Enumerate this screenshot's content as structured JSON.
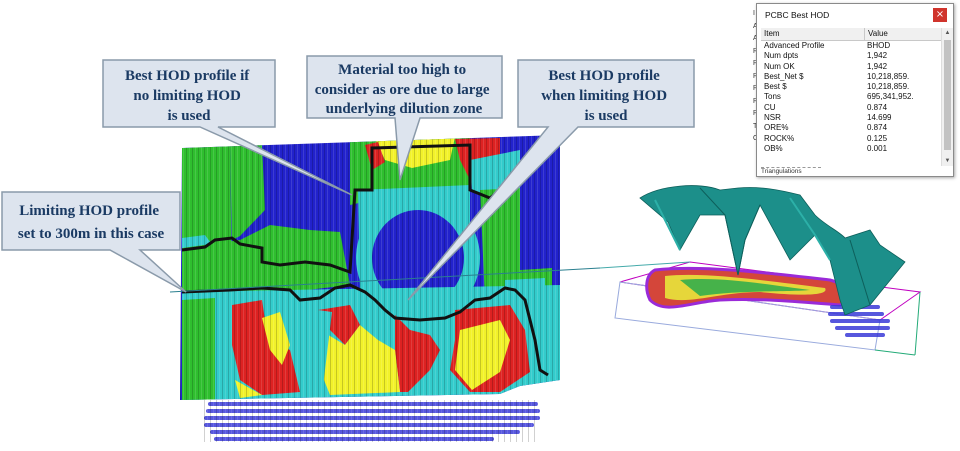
{
  "callouts": {
    "best_no_limit": [
      "Best HOD profile if",
      "no limiting  HOD",
      "is used"
    ],
    "too_high": [
      "Material too high to",
      "consider as ore due to large",
      "underlying dilution zone"
    ],
    "best_limit": [
      "Best HOD profile",
      "when limiting  HOD",
      "is used"
    ],
    "limiting": [
      "Limiting  HOD profile",
      "set to 300m in this case"
    ]
  },
  "dialog": {
    "title": "PCBC Best HOD",
    "close_glyph": "×",
    "columns": [
      "Item",
      "Value"
    ],
    "rows": [
      {
        "item": "Advanced Profile",
        "value": "BHOD"
      },
      {
        "item": "Num dpts",
        "value": "1,942"
      },
      {
        "item": "Num OK",
        "value": "1,942"
      },
      {
        "item": "Best_Net $",
        "value": "10,218,859."
      },
      {
        "item": "Best $",
        "value": "10,218,859."
      },
      {
        "item": "Tons",
        "value": "695,341,952."
      },
      {
        "item": "CU",
        "value": "0.874"
      },
      {
        "item": "NSR",
        "value": "14.699"
      },
      {
        "item": "ORE%",
        "value": "0.874"
      },
      {
        "item": "ROCK%",
        "value": "0.125"
      },
      {
        "item": "OB%",
        "value": "0.001"
      }
    ],
    "footer": "Triangulations"
  },
  "side_letters": [
    "I",
    "A",
    "A",
    "R",
    "P",
    "P",
    "P",
    "P",
    "P",
    "T",
    "O"
  ],
  "colors": {
    "green": "#2fbf2f",
    "blue": "#2222cc",
    "cyan": "#33cccc",
    "red": "#dd2222",
    "yellow": "#f2f22a",
    "profile_line": "#111111",
    "callout_fill": "#dde4ee",
    "callout_text": "#1a3a63",
    "teal_surface": "#1c8f8a"
  },
  "icons": {
    "close": "close-icon",
    "scroll_up": "scroll-up-icon",
    "scroll_down": "scroll-down-icon"
  }
}
